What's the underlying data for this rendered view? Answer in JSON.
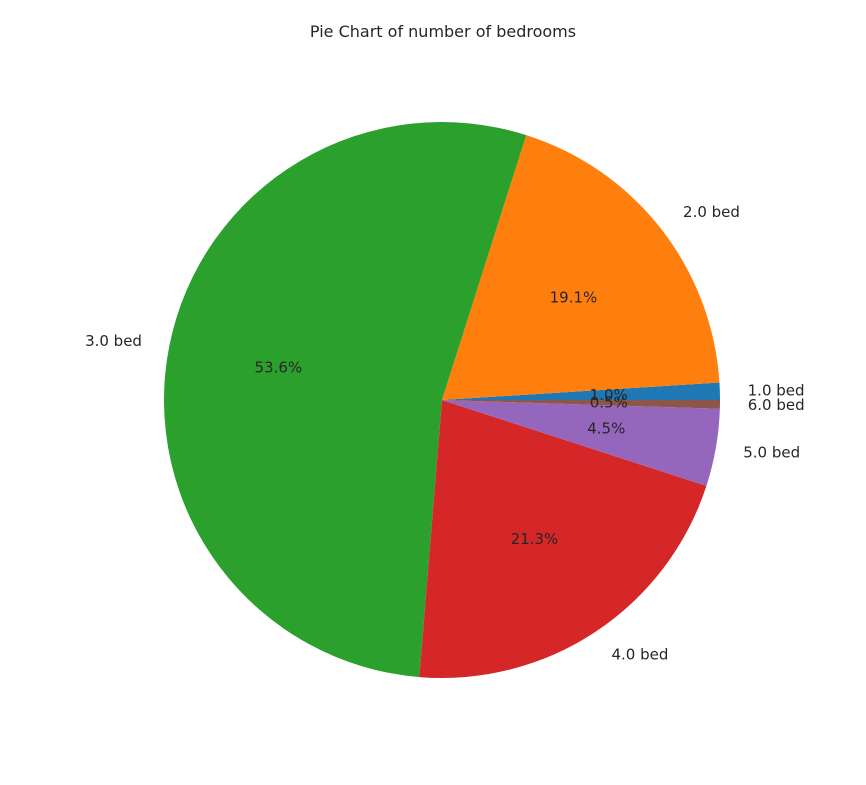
{
  "chart_data": {
    "type": "pie",
    "title": "Pie Chart of number of bedrooms",
    "start_angle_deg": 0,
    "direction": "counterclockwise",
    "slices": [
      {
        "label": "1.0 bed",
        "value": 1.0,
        "pct_label": "1.0%",
        "color": "#1f77b4"
      },
      {
        "label": "2.0 bed",
        "value": 19.1,
        "pct_label": "19.1%",
        "color": "#ff7f0e"
      },
      {
        "label": "3.0 bed",
        "value": 53.6,
        "pct_label": "53.6%",
        "color": "#2ca02c"
      },
      {
        "label": "4.0 bed",
        "value": 21.3,
        "pct_label": "21.3%",
        "color": "#d62728"
      },
      {
        "label": "5.0 bed",
        "value": 4.5,
        "pct_label": "4.5%",
        "color": "#9467bd"
      },
      {
        "label": "6.0 bed",
        "value": 0.5,
        "pct_label": "0.5%",
        "color": "#8c564b"
      }
    ]
  }
}
